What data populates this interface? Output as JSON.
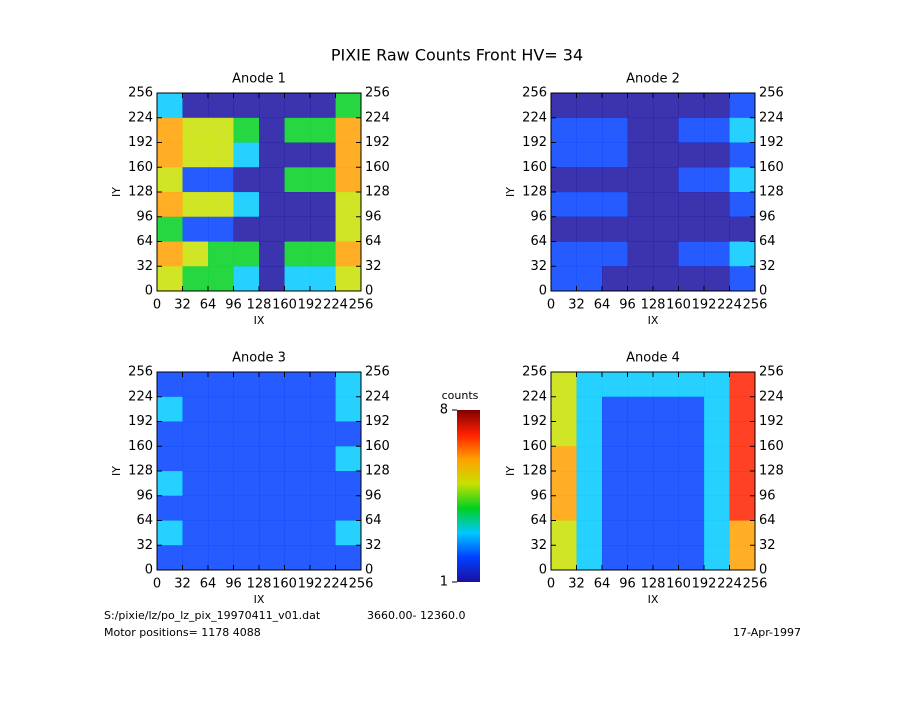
{
  "title": "PIXIE Raw Counts Front HV= 34",
  "chart_data": [
    {
      "type": "heatmap",
      "title": "Anode 1",
      "xlabel": "IX",
      "ylabel": "IY",
      "xlim": [
        0,
        256
      ],
      "ylim": [
        0,
        256
      ],
      "xticks": [
        0,
        32,
        64,
        96,
        128,
        160,
        192,
        224,
        256
      ],
      "yticks": [
        0,
        32,
        64,
        96,
        128,
        160,
        192,
        224,
        256
      ],
      "values": [
        [
          3,
          1,
          1,
          1,
          1,
          1,
          1,
          4
        ],
        [
          6,
          5,
          5,
          4,
          1,
          4,
          4,
          6
        ],
        [
          6,
          5,
          5,
          3,
          1,
          1,
          1,
          6
        ],
        [
          5,
          2,
          2,
          1,
          1,
          4,
          4,
          6
        ],
        [
          6,
          5,
          5,
          3,
          1,
          1,
          1,
          5
        ],
        [
          4,
          2,
          2,
          1,
          1,
          1,
          1,
          5
        ],
        [
          6,
          5,
          4,
          4,
          1,
          4,
          4,
          6
        ],
        [
          5,
          4,
          4,
          3,
          1,
          3,
          3,
          5
        ]
      ]
    },
    {
      "type": "heatmap",
      "title": "Anode 2",
      "xlabel": "IX",
      "ylabel": "IY",
      "xlim": [
        0,
        256
      ],
      "ylim": [
        0,
        256
      ],
      "xticks": [
        0,
        32,
        64,
        96,
        128,
        160,
        192,
        224,
        256
      ],
      "yticks": [
        0,
        32,
        64,
        96,
        128,
        160,
        192,
        224,
        256
      ],
      "values": [
        [
          1,
          1,
          1,
          1,
          1,
          1,
          1,
          2
        ],
        [
          2,
          2,
          2,
          1,
          1,
          2,
          2,
          3
        ],
        [
          2,
          2,
          2,
          1,
          1,
          1,
          1,
          2
        ],
        [
          1,
          1,
          1,
          1,
          1,
          2,
          2,
          3
        ],
        [
          2,
          2,
          2,
          1,
          1,
          1,
          1,
          2
        ],
        [
          1,
          1,
          1,
          1,
          1,
          1,
          1,
          1
        ],
        [
          2,
          2,
          2,
          1,
          1,
          2,
          2,
          3
        ],
        [
          2,
          2,
          1,
          1,
          1,
          1,
          1,
          2
        ]
      ]
    },
    {
      "type": "heatmap",
      "title": "Anode 3",
      "xlabel": "IX",
      "ylabel": "IY",
      "xlim": [
        0,
        256
      ],
      "ylim": [
        0,
        256
      ],
      "xticks": [
        0,
        32,
        64,
        96,
        128,
        160,
        192,
        224,
        256
      ],
      "yticks": [
        0,
        32,
        64,
        96,
        128,
        160,
        192,
        224,
        256
      ],
      "values": [
        [
          2,
          2,
          2,
          2,
          2,
          2,
          2,
          3
        ],
        [
          3,
          2,
          2,
          2,
          2,
          2,
          2,
          3
        ],
        [
          2,
          2,
          2,
          2,
          2,
          2,
          2,
          2
        ],
        [
          2,
          2,
          2,
          2,
          2,
          2,
          2,
          3
        ],
        [
          3,
          2,
          2,
          2,
          2,
          2,
          2,
          2
        ],
        [
          2,
          2,
          2,
          2,
          2,
          2,
          2,
          2
        ],
        [
          3,
          2,
          2,
          2,
          2,
          2,
          2,
          3
        ],
        [
          2,
          2,
          2,
          2,
          2,
          2,
          2,
          2
        ]
      ]
    },
    {
      "type": "heatmap",
      "title": "Anode 4",
      "xlabel": "IX",
      "ylabel": "IY",
      "xlim": [
        0,
        256
      ],
      "ylim": [
        0,
        256
      ],
      "xticks": [
        0,
        32,
        64,
        96,
        128,
        160,
        192,
        224,
        256
      ],
      "yticks": [
        0,
        32,
        64,
        96,
        128,
        160,
        192,
        224,
        256
      ],
      "values": [
        [
          5,
          3,
          3,
          3,
          3,
          3,
          3,
          7
        ],
        [
          5,
          3,
          2,
          2,
          2,
          2,
          3,
          7
        ],
        [
          5,
          3,
          2,
          2,
          2,
          2,
          3,
          7
        ],
        [
          6,
          3,
          2,
          2,
          2,
          2,
          3,
          7
        ],
        [
          6,
          3,
          2,
          2,
          2,
          2,
          3,
          7
        ],
        [
          6,
          3,
          2,
          2,
          2,
          2,
          3,
          7
        ],
        [
          5,
          3,
          2,
          2,
          2,
          2,
          3,
          6
        ],
        [
          5,
          3,
          2,
          2,
          2,
          2,
          3,
          6
        ]
      ]
    }
  ],
  "colorbar": {
    "label": "counts",
    "zlim": [
      1,
      8
    ],
    "ticks": [
      1,
      8
    ],
    "colormap": [
      "#1a0fa0",
      "#0040ff",
      "#00c8ff",
      "#00d020",
      "#c8e000",
      "#ffa000",
      "#ff2000",
      "#800000"
    ]
  },
  "footer": {
    "file": "S:/pixie/lz/po_lz_pix_19970411_v01.dat",
    "range": "3660.00- 12360.0",
    "motor": "Motor positions= 1178 4088",
    "date": "17-Apr-1997"
  }
}
